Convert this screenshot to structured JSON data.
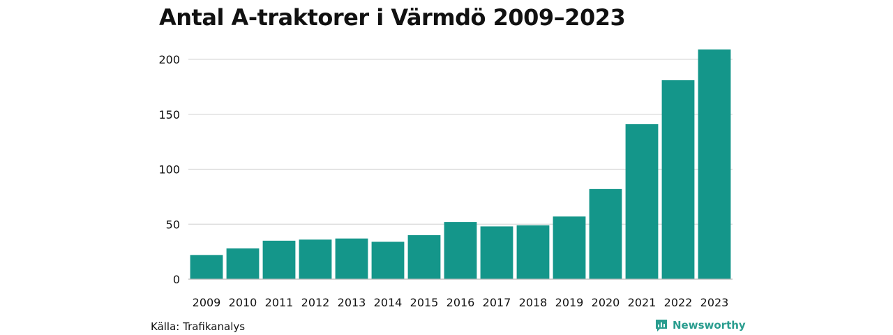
{
  "title": "Antal A-traktorer i Värmdö 2009–2023",
  "source": "Källa: Trafikanalys",
  "brand": {
    "name": "Newsworthy",
    "icon": "newsworthy-logo-icon"
  },
  "colors": {
    "bar": "#14968a",
    "grid": "#d9d9d9",
    "brand": "#2a9d8f"
  },
  "chart_data": {
    "type": "bar",
    "title": "Antal A-traktorer i Värmdö 2009–2023",
    "categories": [
      "2009",
      "2010",
      "2011",
      "2012",
      "2013",
      "2014",
      "2015",
      "2016",
      "2017",
      "2018",
      "2019",
      "2020",
      "2021",
      "2022",
      "2023"
    ],
    "values": [
      22,
      28,
      35,
      36,
      37,
      34,
      40,
      52,
      48,
      49,
      57,
      82,
      141,
      181,
      209
    ],
    "xlabel": "",
    "ylabel": "",
    "ylim": [
      0,
      210
    ],
    "yticks": [
      0,
      50,
      100,
      150,
      200
    ],
    "grid": true,
    "legend": "none"
  }
}
